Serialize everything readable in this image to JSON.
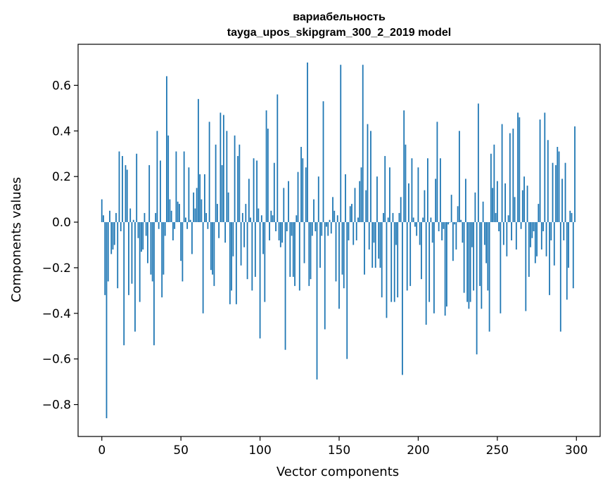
{
  "chart_data": {
    "type": "bar",
    "title_lines": [
      "вариабельность",
      "tayga_upos_skipgram_300_2_2019 model"
    ],
    "xlabel": "Vector components",
    "ylabel": "Components values",
    "xlim": [
      -15,
      315
    ],
    "ylim": [
      -0.94,
      0.78
    ],
    "xticks": [
      0,
      50,
      100,
      150,
      200,
      250,
      300
    ],
    "xtick_labels": [
      "0",
      "50",
      "100",
      "150",
      "200",
      "250",
      "300"
    ],
    "yticks": [
      -0.8,
      -0.6,
      -0.4,
      -0.2,
      0.0,
      0.2,
      0.4,
      0.6
    ],
    "ytick_labels": [
      "−0.8",
      "−0.6",
      "−0.4",
      "−0.2",
      "0.0",
      "0.2",
      "0.4",
      "0.6"
    ],
    "grid": false,
    "bar_color": "#1f77b4",
    "bar_width": 0.8,
    "values": [
      0.1,
      0.03,
      -0.32,
      -0.86,
      -0.26,
      0.05,
      -0.14,
      -0.12,
      -0.1,
      0.04,
      -0.29,
      0.31,
      -0.04,
      0.29,
      -0.54,
      0.25,
      0.23,
      -0.32,
      0.06,
      -0.27,
      0.01,
      -0.48,
      0.3,
      -0.07,
      -0.35,
      -0.13,
      -0.12,
      0.04,
      -0.06,
      -0.18,
      0.25,
      -0.23,
      -0.26,
      -0.54,
      0.04,
      0.4,
      -0.03,
      0.27,
      -0.33,
      -0.23,
      -0.06,
      0.64,
      0.38,
      0.1,
      0.05,
      -0.08,
      -0.03,
      0.31,
      0.09,
      0.08,
      -0.17,
      -0.26,
      0.31,
      0.02,
      -0.03,
      0.24,
      0.01,
      -0.14,
      0.13,
      0.06,
      0.15,
      0.54,
      0.21,
      0.1,
      -0.4,
      0.21,
      0.04,
      -0.03,
      0.44,
      -0.21,
      -0.23,
      -0.28,
      0.34,
      0.08,
      -0.07,
      0.48,
      0.25,
      0.47,
      -0.09,
      0.4,
      0.13,
      -0.36,
      -0.3,
      -0.15,
      0.38,
      -0.36,
      0.29,
      0.34,
      -0.19,
      0.04,
      -0.11,
      0.08,
      -0.25,
      0.19,
      0.02,
      -0.3,
      0.28,
      -0.24,
      0.27,
      0.06,
      -0.51,
      0.03,
      -0.14,
      -0.35,
      0.49,
      0.41,
      -0.08,
      0.05,
      0.03,
      0.26,
      -0.04,
      0.56,
      -0.08,
      -0.11,
      -0.09,
      0.15,
      -0.56,
      -0.04,
      0.18,
      -0.24,
      -0.06,
      -0.24,
      -0.28,
      0.03,
      0.22,
      -0.3,
      0.33,
      0.28,
      -0.18,
      0.24,
      0.7,
      -0.28,
      -0.25,
      -0.06,
      0.1,
      -0.04,
      -0.69,
      0.2,
      -0.2,
      -0.06,
      0.53,
      -0.47,
      -0.02,
      -0.06,
      0.01,
      -0.05,
      0.11,
      0.05,
      -0.26,
      0.03,
      -0.38,
      0.69,
      -0.23,
      -0.29,
      0.21,
      -0.6,
      -0.08,
      0.07,
      0.08,
      -0.1,
      0.15,
      -0.08,
      0.02,
      0.18,
      0.24,
      0.69,
      -0.23,
      0.14,
      0.43,
      -0.12,
      0.4,
      -0.2,
      -0.09,
      -0.2,
      0.2,
      -0.16,
      -0.2,
      -0.33,
      0.04,
      0.29,
      -0.42,
      0.02,
      0.24,
      -0.35,
      0.04,
      -0.35,
      -0.1,
      -0.33,
      0.04,
      0.11,
      -0.67,
      0.49,
      0.34,
      -0.3,
      0.17,
      -0.28,
      0.28,
      0.02,
      -0.02,
      -0.06,
      0.24,
      -0.1,
      -0.25,
      0.02,
      0.14,
      -0.45,
      0.28,
      -0.35,
      0.02,
      -0.09,
      -0.4,
      0.19,
      0.44,
      -0.04,
      0.28,
      -0.08,
      -0.03,
      -0.41,
      -0.37,
      -0.01,
      0.0,
      0.12,
      -0.17,
      -0.01,
      -0.12,
      0.07,
      0.4,
      0.01,
      -0.09,
      -0.31,
      0.19,
      -0.35,
      -0.38,
      -0.35,
      -0.11,
      -0.3,
      0.13,
      -0.58,
      0.52,
      -0.28,
      -0.38,
      0.09,
      -0.1,
      -0.18,
      -0.3,
      -0.48,
      0.3,
      0.15,
      0.34,
      0.04,
      0.18,
      -0.04,
      -0.4,
      0.43,
      -0.1,
      0.17,
      -0.15,
      0.03,
      0.39,
      -0.08,
      0.41,
      0.11,
      -0.12,
      0.48,
      0.46,
      -0.03,
      0.14,
      0.2,
      -0.39,
      0.16,
      -0.24,
      -0.11,
      -0.07,
      -0.04,
      -0.18,
      -0.15,
      0.08,
      0.45,
      -0.12,
      -0.04,
      0.48,
      -0.15,
      0.36,
      -0.32,
      -0.08,
      0.26,
      -0.19,
      0.25,
      0.33,
      0.31,
      -0.48,
      0.19,
      -0.08,
      0.26,
      -0.34,
      -0.2,
      0.05,
      0.04,
      -0.29,
      0.42
    ]
  }
}
